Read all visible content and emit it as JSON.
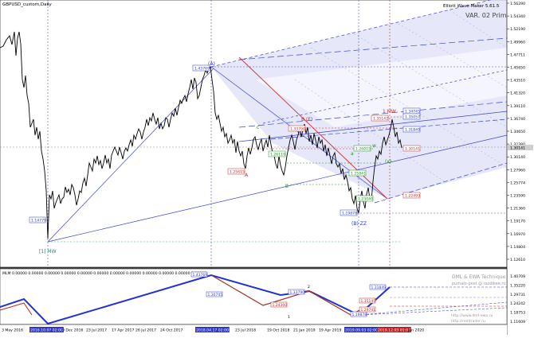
{
  "chart_title": "GBPUSD_custom,Daily",
  "indicator_name": "Elliott Wave Maker 5.61.5",
  "var_label": "VAR. 02 Primary",
  "price_axis": [
    "1.56290",
    "1.54340",
    "1.52190",
    "1.49960",
    "1.47711",
    "1.45650",
    "1.43510",
    "1.41320",
    "1.39110",
    "1.36740",
    "1.34650",
    "1.32380",
    "1.30140",
    "1.27960",
    "1.25774",
    "1.23590",
    "1.21360",
    "1.19170",
    "1.16970",
    "1.14804",
    "1.12610"
  ],
  "current_price": "1.30141",
  "wave_labels": {
    "w1mw": "[1] MW",
    "wA": "(A)",
    "wB": "B (F)",
    "wBzz": "(B) ZZ",
    "w1mw_right": "1 MW",
    "lA": "A",
    "lc": "c",
    "lb": "b",
    "la": "a",
    "lw": "w",
    "lx": "(x)",
    "ly": "y",
    "l1": "1",
    "l2": "2"
  },
  "price_boxes": {
    "p1": "1.14779",
    "p2": "1.43769",
    "p3": "1.25615",
    "p4": "1.33790",
    "p5": "1.35142",
    "p6": "1.26015",
    "p7": "1.23040",
    "p8": "1.19878",
    "p9": "1.34745",
    "p10": "1.35057",
    "p11": "1.31849",
    "p12": "1.30141",
    "p13": "1.22493",
    "p14": "1.26119",
    "p15": "1.25841"
  },
  "sub_window": {
    "name": "MLM",
    "values": "0.00000 0.00000 0.00000 0.00000 0.00000 0.00000 0.00000 0.00000 0.00000 0.00000 0.00000 0.00000",
    "box1": "1.43769",
    "box2": "1.33790",
    "box3": "1.30745",
    "box4": "1.24300",
    "box5": "1.19878",
    "box6": "1.35145",
    "box7": "1.31849",
    "box8": "1.29741",
    "sub_right": [
      "1.40709",
      "1.35220",
      "1.29731",
      "1.24242",
      "1.18753",
      "1.11609"
    ]
  },
  "watermark": {
    "line1": "DML & EWA Technique",
    "line2": "pumalo-post @ razdikee.ru",
    "line3": "http://www.dml-ewa.ru",
    "line4": "http://reditrader.ru"
  },
  "time_axis": [
    "3 May 2016",
    "2016.10.07 02:00",
    "9 Dec 2016",
    "23 Jul 2017",
    "17 Apr 2017",
    "26 Jul 2017",
    "24 Oct 2017",
    "2018.04.17 02:00",
    "23 Jul 2018",
    "19 Oct 2018",
    "21 Jan 2019",
    "19 Apr 2019",
    "2019.09.03 02:00",
    "2019.12.03 01:00",
    "Jan 2020"
  ],
  "colors": {
    "blue": "#2f37c8",
    "red": "#c02020",
    "green": "#209020",
    "channel_fill": "#d8dcf6",
    "price_tag": "#2f37c8"
  }
}
